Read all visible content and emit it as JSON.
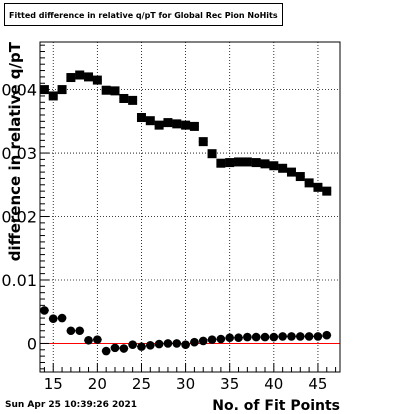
{
  "chart_title": "Fitted difference in relative q/pT for Global Rec Pion NoHits",
  "footer_date": "Sun Apr 25 10:39:26 2021",
  "colors": {
    "marker": "#000000",
    "zero_line": "#ff0000",
    "grid": "#000000",
    "frame": "#000000"
  },
  "chart_data": {
    "type": "scatter",
    "title": "Fitted difference in relative q/pT for Global Rec Pion NoHits",
    "xlabel": "No. of Fit Points",
    "ylabel": "difference in relative q/pT",
    "xlim": [
      13.5,
      47.5
    ],
    "ylim": [
      -0.0045,
      0.0475
    ],
    "x_ticks": [
      15,
      20,
      25,
      30,
      35,
      40,
      45
    ],
    "x_tick_labels": [
      "15",
      "20",
      "25",
      "30",
      "35",
      "40",
      "45"
    ],
    "y_ticks": [
      0,
      0.01,
      0.02,
      0.03,
      0.04
    ],
    "y_tick_labels": [
      "0",
      "0.01",
      "0.02",
      "0.03",
      "0.04"
    ],
    "grid": true,
    "reference_line": {
      "y": 0,
      "color": "#ff0000"
    },
    "series": [
      {
        "marker": "square",
        "x": [
          14,
          15,
          16,
          17,
          18,
          19,
          20,
          21,
          22,
          23,
          24,
          25,
          26,
          27,
          28,
          29,
          30,
          31,
          32,
          33,
          34,
          35,
          36,
          37,
          38,
          39,
          40,
          41,
          42,
          43,
          44,
          45,
          46
        ],
        "y": [
          0.04,
          0.039,
          0.04,
          0.0419,
          0.0423,
          0.042,
          0.0415,
          0.0399,
          0.0398,
          0.0386,
          0.0383,
          0.0356,
          0.0351,
          0.0344,
          0.0348,
          0.0346,
          0.0344,
          0.0342,
          0.0318,
          0.0299,
          0.0284,
          0.0285,
          0.0286,
          0.0286,
          0.0285,
          0.0283,
          0.028,
          0.0276,
          0.027,
          0.0263,
          0.0253,
          0.0246,
          0.024
        ]
      },
      {
        "marker": "circle",
        "x": [
          14,
          15,
          16,
          17,
          18,
          19,
          20,
          21,
          22,
          23,
          24,
          25,
          26,
          27,
          28,
          29,
          30,
          31,
          32,
          33,
          34,
          35,
          36,
          37,
          38,
          39,
          40,
          41,
          42,
          43,
          44,
          45,
          46
        ],
        "y": [
          0.0052,
          0.0039,
          0.004,
          0.002,
          0.002,
          0.0005,
          0.0006,
          -0.0012,
          -0.0007,
          -0.0008,
          -0.0002,
          -0.0005,
          -0.0003,
          -0.0001,
          0.0,
          0.0,
          -0.0002,
          0.0002,
          0.0004,
          0.0006,
          0.0007,
          0.0009,
          0.0009,
          0.001,
          0.001,
          0.001,
          0.001,
          0.0011,
          0.0011,
          0.0011,
          0.0011,
          0.0011,
          0.0013
        ]
      }
    ]
  }
}
